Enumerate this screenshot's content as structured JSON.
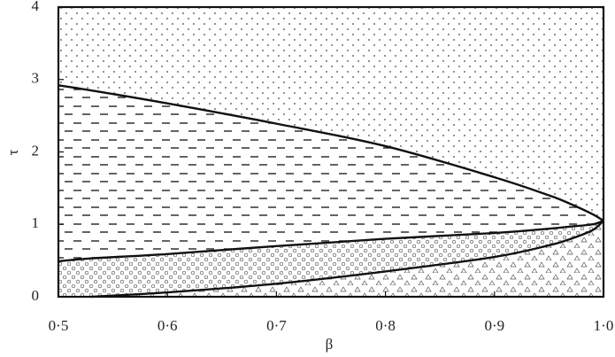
{
  "chart_data": {
    "type": "line",
    "xlabel": "β",
    "ylabel": "τ",
    "x": [
      0.5,
      0.53,
      0.6,
      0.7,
      0.8,
      0.9,
      0.95,
      0.97,
      0.99,
      1.0
    ],
    "series": [
      {
        "color": "#111111",
        "values": [
          2.92,
          2.85,
          2.67,
          2.39,
          2.08,
          1.65,
          1.4,
          1.28,
          1.14,
          1.05
        ]
      },
      {
        "color": "#111111",
        "values": [
          0.49,
          0.53,
          0.59,
          0.7,
          0.8,
          0.88,
          0.94,
          0.97,
          1.0,
          1.05
        ]
      },
      {
        "color": "#111111",
        "values": [
          null,
          0,
          0.06,
          0.18,
          0.35,
          0.55,
          0.71,
          0.8,
          0.92,
          1.05
        ]
      }
    ],
    "xlim": [
      0.5,
      1.0
    ],
    "ylim": [
      0,
      4
    ],
    "xticks": [
      {
        "value": 0.5,
        "label": "0·5"
      },
      {
        "value": 0.6,
        "label": "0·6"
      },
      {
        "value": 0.7,
        "label": "0·7"
      },
      {
        "value": 0.8,
        "label": "0·8"
      },
      {
        "value": 0.9,
        "label": "0·9"
      },
      {
        "value": 1.0,
        "label": "1·0"
      }
    ],
    "yticks": [
      0,
      1,
      2,
      3,
      4
    ]
  }
}
